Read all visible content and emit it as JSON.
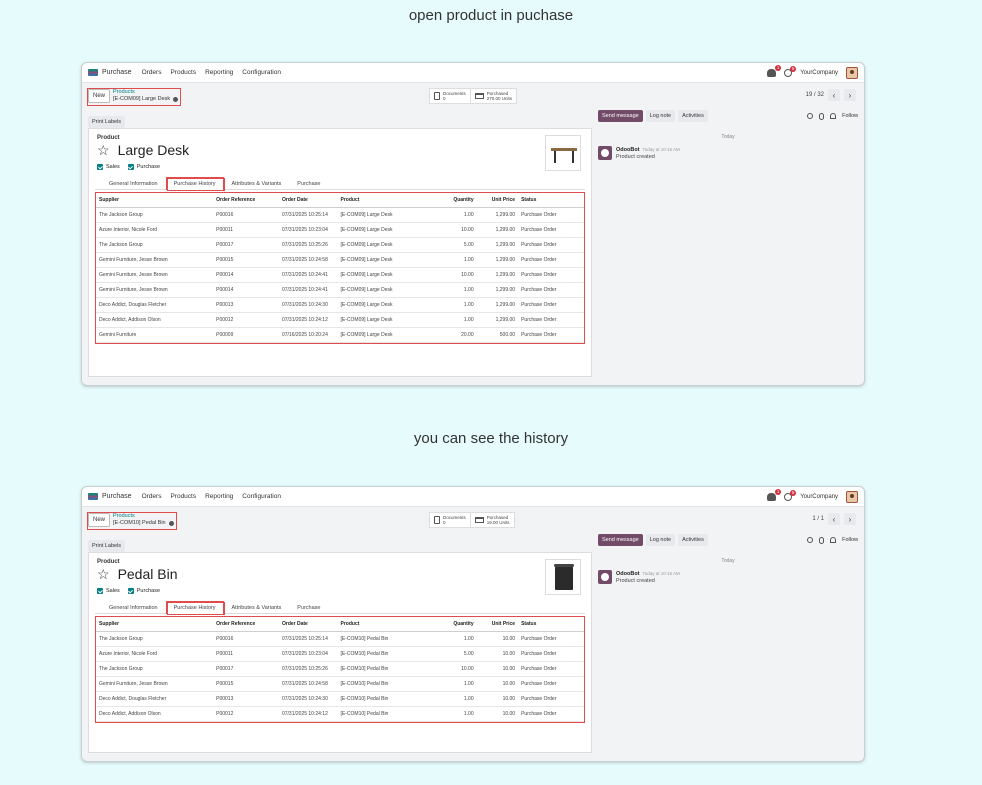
{
  "captions": {
    "top": "open product in puchase",
    "middle": "you can see the history"
  },
  "shots": [
    {
      "navbar": {
        "app": "Purchase",
        "menu": [
          "Orders",
          "Products",
          "Reporting",
          "Configuration"
        ],
        "notif_count": "1",
        "activity_count": "5",
        "company": "YourCompany"
      },
      "control": {
        "new_label": "New",
        "crumb_parent": "Products",
        "crumb_current": "[E-COM09] Large Desk",
        "documents_label": "Documents",
        "documents_value": "0",
        "purchased_label": "Purchased",
        "purchased_value": "270.00 Units",
        "pager": "19 / 32"
      },
      "form": {
        "print_label": "Print Labels",
        "product_label": "Product",
        "name": "Large Desk",
        "sales_label": "Sales",
        "purchase_label": "Purchase",
        "tabs": [
          "General Information",
          "Purchase History",
          "Attributes & Variants",
          "Purchase"
        ]
      },
      "table": {
        "headers": [
          "Supplier",
          "Order Reference",
          "Order Date",
          "Product",
          "Quantity",
          "Unit Price",
          "Status"
        ],
        "rows": [
          [
            "The Jackson Group",
            "P00016",
            "07/31/2025 10:25:14",
            "[E-COM09] Large Desk",
            "1.00",
            "1,299.00",
            "Purchase Order"
          ],
          [
            "Azure Interior, Nicole Ford",
            "P00011",
            "07/31/2025 10:23:04",
            "[E-COM09] Large Desk",
            "10.00",
            "1,299.00",
            "Purchase Order"
          ],
          [
            "The Jackson Group",
            "P00017",
            "07/31/2025 10:25:26",
            "[E-COM09] Large Desk",
            "5.00",
            "1,299.00",
            "Purchase Order"
          ],
          [
            "Gemini Furniture, Jesse Brown",
            "P00015",
            "07/31/2025 10:24:58",
            "[E-COM09] Large Desk",
            "1.00",
            "1,299.00",
            "Purchase Order"
          ],
          [
            "Gemini Furniture, Jesse Brown",
            "P00014",
            "07/31/2025 10:24:41",
            "[E-COM09] Large Desk",
            "10.00",
            "1,299.00",
            "Purchase Order"
          ],
          [
            "Gemini Furniture, Jesse Brown",
            "P00014",
            "07/31/2025 10:24:41",
            "[E-COM09] Large Desk",
            "1.00",
            "1,299.00",
            "Purchase Order"
          ],
          [
            "Deco Addict, Douglas Fletcher",
            "P00013",
            "07/31/2025 10:24:30",
            "[E-COM09] Large Desk",
            "1.00",
            "1,299.00",
            "Purchase Order"
          ],
          [
            "Deco Addict, Addison Olson",
            "P00012",
            "07/31/2025 10:24:12",
            "[E-COM09] Large Desk",
            "1.00",
            "1,299.00",
            "Purchase Order"
          ],
          [
            "Gemini Furniture",
            "P00009",
            "07/16/2025 10:20:24",
            "[E-COM09] Large Desk",
            "20.00",
            "500.00",
            "Purchase Order"
          ]
        ]
      },
      "chatter": {
        "send": "Send message",
        "log": "Log note",
        "activities": "Activities",
        "follow": "Follow",
        "today": "Today",
        "author": "OdooBot",
        "time": "Today at 10:15 AM",
        "text": "Product created"
      }
    },
    {
      "navbar": {
        "app": "Purchase",
        "menu": [
          "Orders",
          "Products",
          "Reporting",
          "Configuration"
        ],
        "notif_count": "1",
        "activity_count": "5",
        "company": "YourCompany"
      },
      "control": {
        "new_label": "New",
        "crumb_parent": "Products",
        "crumb_current": "[E-COM10] Pedal Bin",
        "documents_label": "Documents",
        "documents_value": "0",
        "purchased_label": "Purchased",
        "purchased_value": "19.00 Units",
        "pager": "1 / 1"
      },
      "form": {
        "print_label": "Print Labels",
        "product_label": "Product",
        "name": "Pedal Bin",
        "sales_label": "Sales",
        "purchase_label": "Purchase",
        "tabs": [
          "General Information",
          "Purchase History",
          "Attributes & Variants",
          "Purchase"
        ]
      },
      "table": {
        "headers": [
          "Supplier",
          "Order Reference",
          "Order Date",
          "Product",
          "Quantity",
          "Unit Price",
          "Status"
        ],
        "rows": [
          [
            "The Jackson Group",
            "P00016",
            "07/31/2025 10:25:14",
            "[E-COM10] Pedal Bin",
            "1.00",
            "10.00",
            "Purchase Order"
          ],
          [
            "Azure Interior, Nicole Ford",
            "P00011",
            "07/31/2025 10:23:04",
            "[E-COM10] Pedal Bin",
            "5.00",
            "10.00",
            "Purchase Order"
          ],
          [
            "The Jackson Group",
            "P00017",
            "07/31/2025 10:25:26",
            "[E-COM10] Pedal Bin",
            "10.00",
            "10.00",
            "Purchase Order"
          ],
          [
            "Gemini Furniture, Jesse Brown",
            "P00015",
            "07/31/2025 10:24:58",
            "[E-COM10] Pedal Bin",
            "1.00",
            "10.00",
            "Purchase Order"
          ],
          [
            "Deco Addict, Douglas Fletcher",
            "P00013",
            "07/31/2025 10:24:30",
            "[E-COM10] Pedal Bin",
            "1.00",
            "10.00",
            "Purchase Order"
          ],
          [
            "Deco Addict, Addison Olson",
            "P00012",
            "07/31/2025 10:24:12",
            "[E-COM10] Pedal Bin",
            "1.00",
            "10.00",
            "Purchase Order"
          ]
        ]
      },
      "chatter": {
        "send": "Send message",
        "log": "Log note",
        "activities": "Activities",
        "follow": "Follow",
        "today": "Today",
        "author": "OdooBot",
        "time": "Today at 10:15 AM",
        "text": "Product created"
      }
    }
  ]
}
